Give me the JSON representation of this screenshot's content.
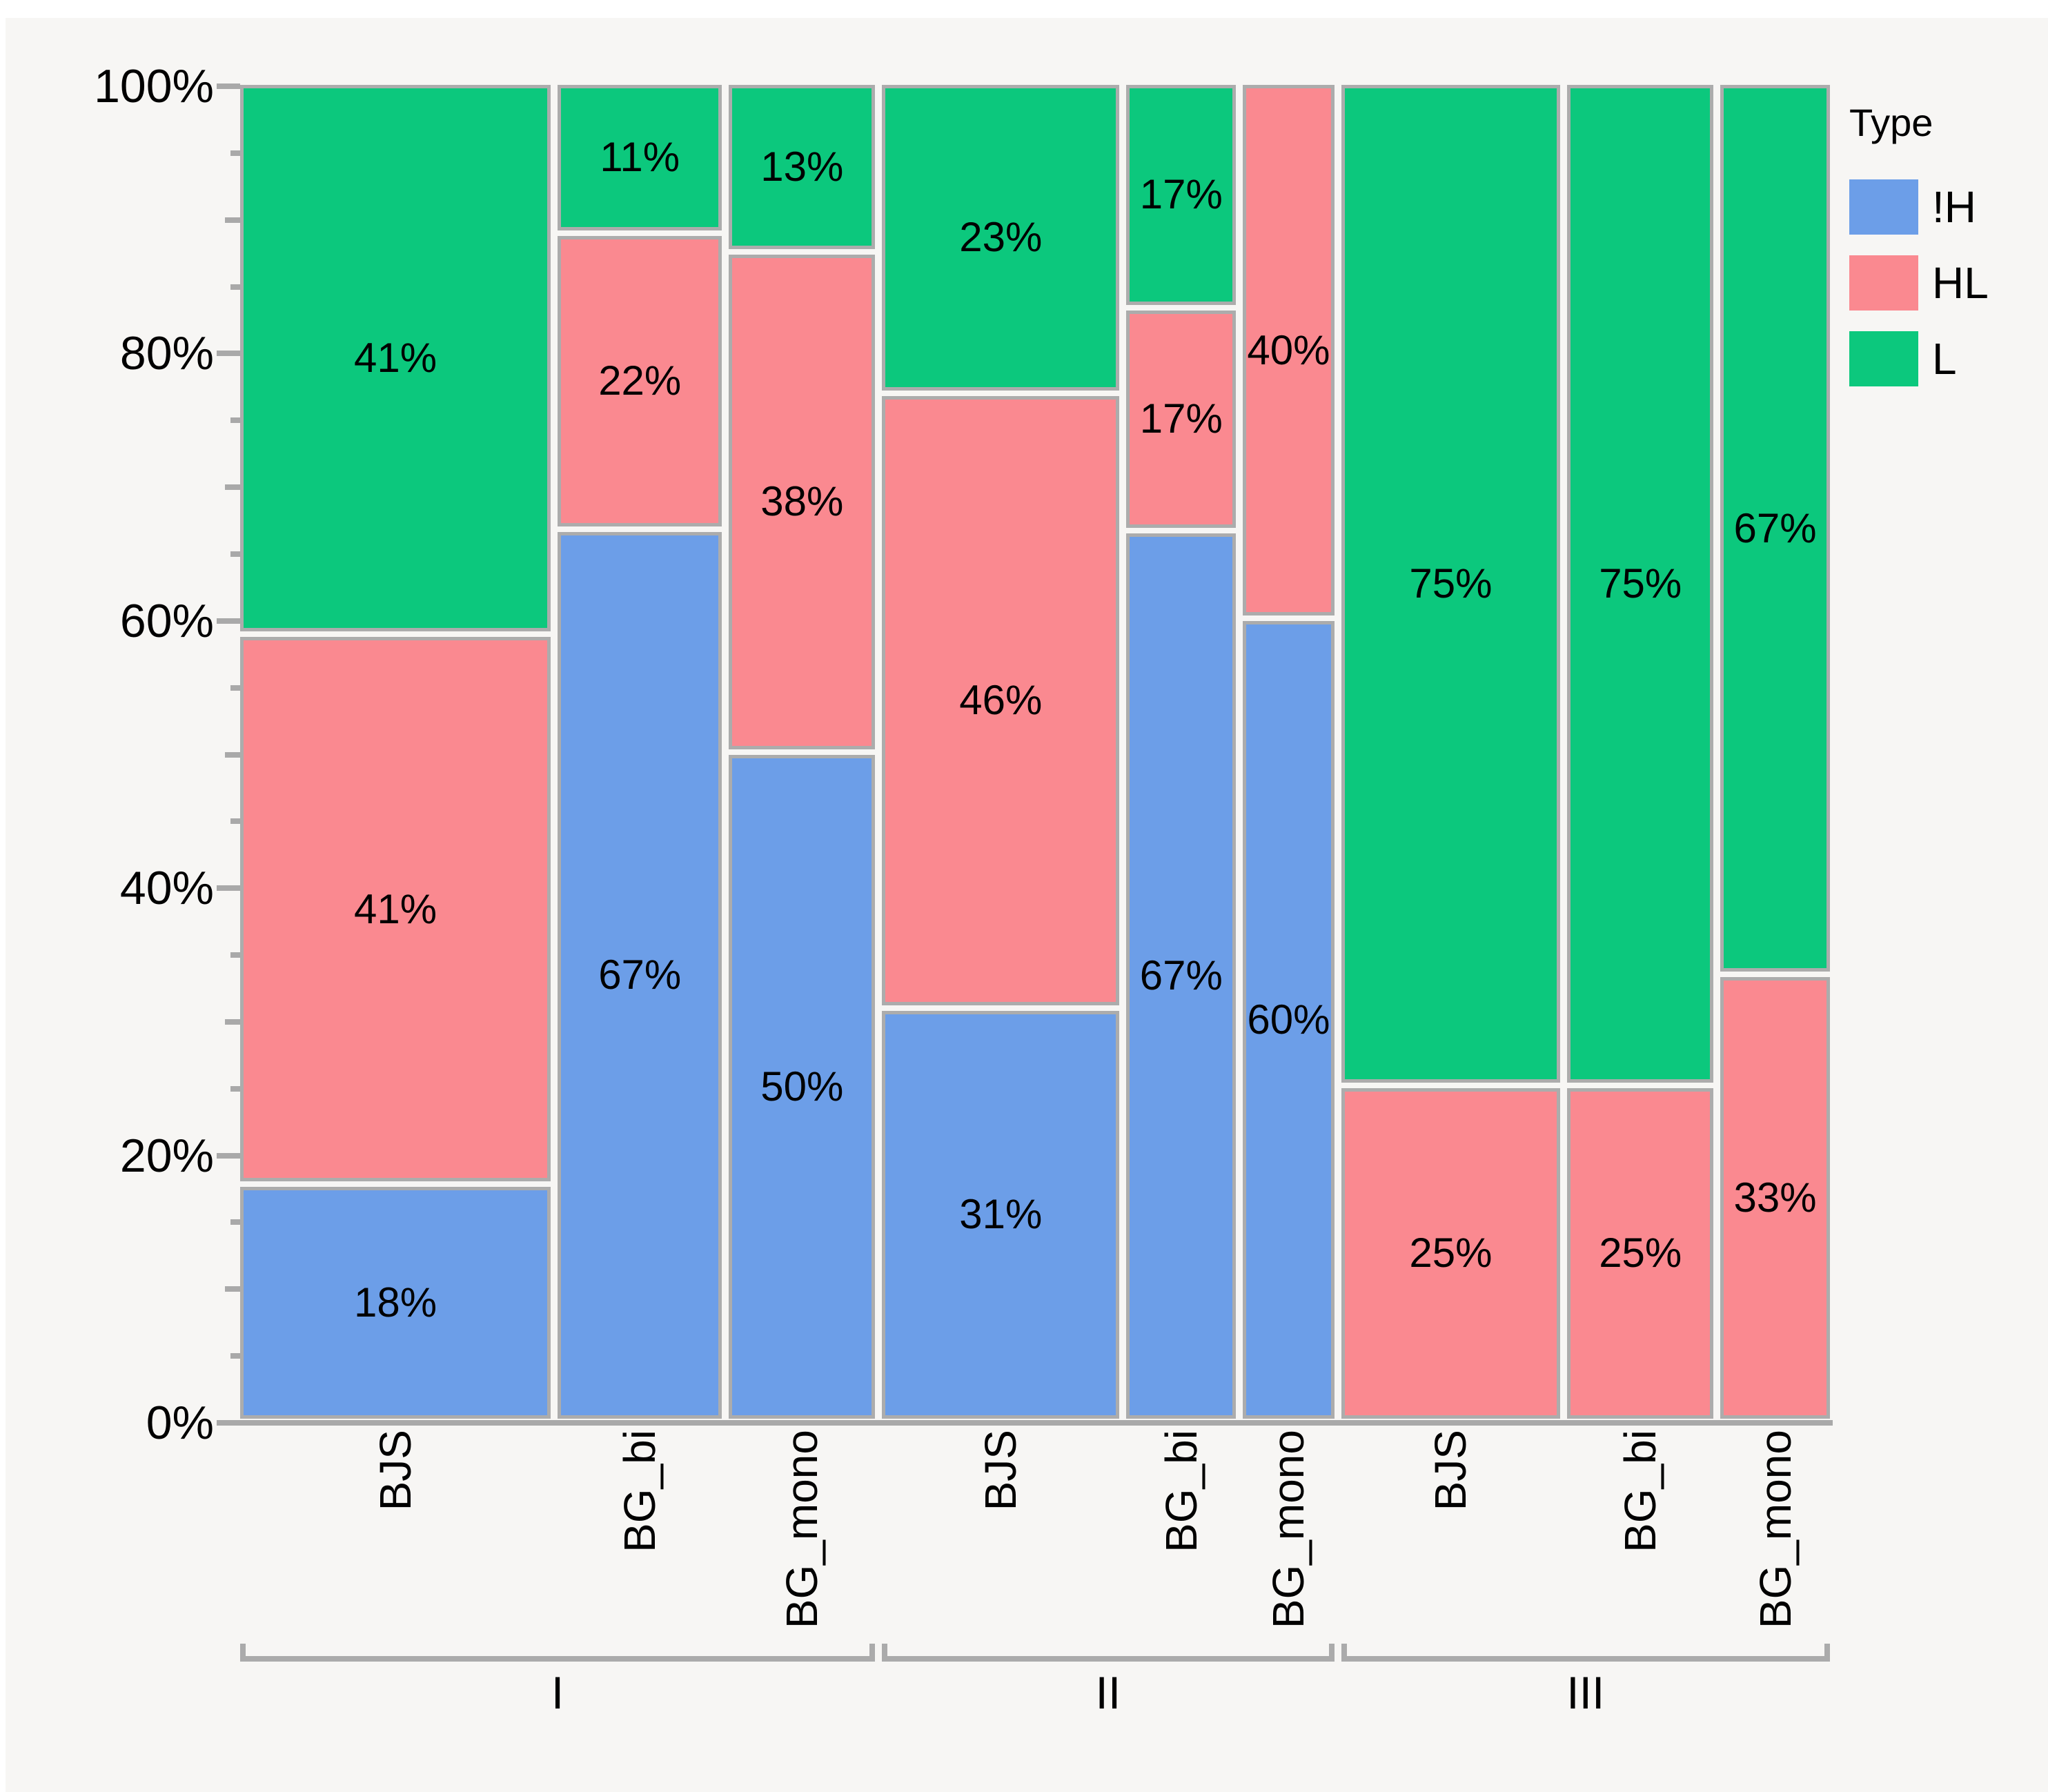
{
  "chart_data": {
    "type": "mosaic",
    "title": "",
    "legend": {
      "title": "Type",
      "position": "top-right",
      "entries": [
        {
          "label": "!H",
          "color": "#6C9EE8"
        },
        {
          "label": "HL",
          "color": "#FA8990"
        },
        {
          "label": "L",
          "color": "#0CC87D"
        }
      ]
    },
    "y_axis": {
      "range_pct": [
        0,
        100
      ],
      "tick_labels": [
        "0%",
        "20%",
        "40%",
        "60%",
        "80%",
        "100%"
      ],
      "major_step_pct": 20,
      "mid_step_pct": 10,
      "minor_step_pct": 5
    },
    "x_axis": {
      "bar_labels": [
        "BJS",
        "BG_bi",
        "BG_mono",
        "BJS",
        "BG_bi",
        "BG_mono",
        "BJS",
        "BG_bi",
        "BG_mono"
      ],
      "group_labels": [
        "I",
        "II",
        "III"
      ]
    },
    "groups": [
      {
        "label": "I",
        "bars": [
          {
            "label": "BJS",
            "width_weight": 17,
            "segments": [
              {
                "type": "!H",
                "value_pct": 17.6,
                "label": "18%"
              },
              {
                "type": "HL",
                "value_pct": 41.2,
                "label": "41%"
              },
              {
                "type": "L",
                "value_pct": 41.2,
                "label": "41%"
              }
            ]
          },
          {
            "label": "BG_bi",
            "width_weight": 9,
            "segments": [
              {
                "type": "!H",
                "value_pct": 66.7,
                "label": "67%"
              },
              {
                "type": "HL",
                "value_pct": 22.2,
                "label": "22%"
              },
              {
                "type": "L",
                "value_pct": 11.1,
                "label": "11%"
              }
            ]
          },
          {
            "label": "BG_mono",
            "width_weight": 8,
            "segments": [
              {
                "type": "!H",
                "value_pct": 50.0,
                "label": "50%"
              },
              {
                "type": "HL",
                "value_pct": 37.5,
                "label": "38%"
              },
              {
                "type": "L",
                "value_pct": 12.5,
                "label": "13%"
              }
            ]
          }
        ]
      },
      {
        "label": "II",
        "bars": [
          {
            "label": "BJS",
            "width_weight": 13,
            "segments": [
              {
                "type": "!H",
                "value_pct": 30.8,
                "label": "31%"
              },
              {
                "type": "HL",
                "value_pct": 46.1,
                "label": "46%"
              },
              {
                "type": "L",
                "value_pct": 23.1,
                "label": "23%"
              }
            ]
          },
          {
            "label": "BG_bi",
            "width_weight": 6,
            "segments": [
              {
                "type": "!H",
                "value_pct": 66.6,
                "label": "67%"
              },
              {
                "type": "HL",
                "value_pct": 16.7,
                "label": "17%"
              },
              {
                "type": "L",
                "value_pct": 16.7,
                "label": "17%"
              }
            ]
          },
          {
            "label": "BG_mono",
            "width_weight": 5,
            "segments": [
              {
                "type": "!H",
                "value_pct": 60.0,
                "label": "60%"
              },
              {
                "type": "HL",
                "value_pct": 40.0,
                "label": "40%"
              }
            ]
          }
        ]
      },
      {
        "label": "III",
        "bars": [
          {
            "label": "BJS",
            "width_weight": 12,
            "segments": [
              {
                "type": "HL",
                "value_pct": 25.0,
                "label": "25%"
              },
              {
                "type": "L",
                "value_pct": 75.0,
                "label": "75%"
              }
            ]
          },
          {
            "label": "BG_bi",
            "width_weight": 8,
            "segments": [
              {
                "type": "HL",
                "value_pct": 25.0,
                "label": "25%"
              },
              {
                "type": "L",
                "value_pct": 75.0,
                "label": "75%"
              }
            ]
          },
          {
            "label": "BG_mono",
            "width_weight": 6,
            "segments": [
              {
                "type": "HL",
                "value_pct": 33.3,
                "label": "33%"
              },
              {
                "type": "L",
                "value_pct": 66.7,
                "label": "67%"
              }
            ]
          }
        ]
      }
    ],
    "colors": {
      "!H": "#6C9EE8",
      "HL": "#FA8990",
      "L": "#0CC87D",
      "segment_border": "#ACACAC",
      "axis": "#A9A9A9",
      "background": "#F7F6F4",
      "text": "#000000"
    }
  }
}
